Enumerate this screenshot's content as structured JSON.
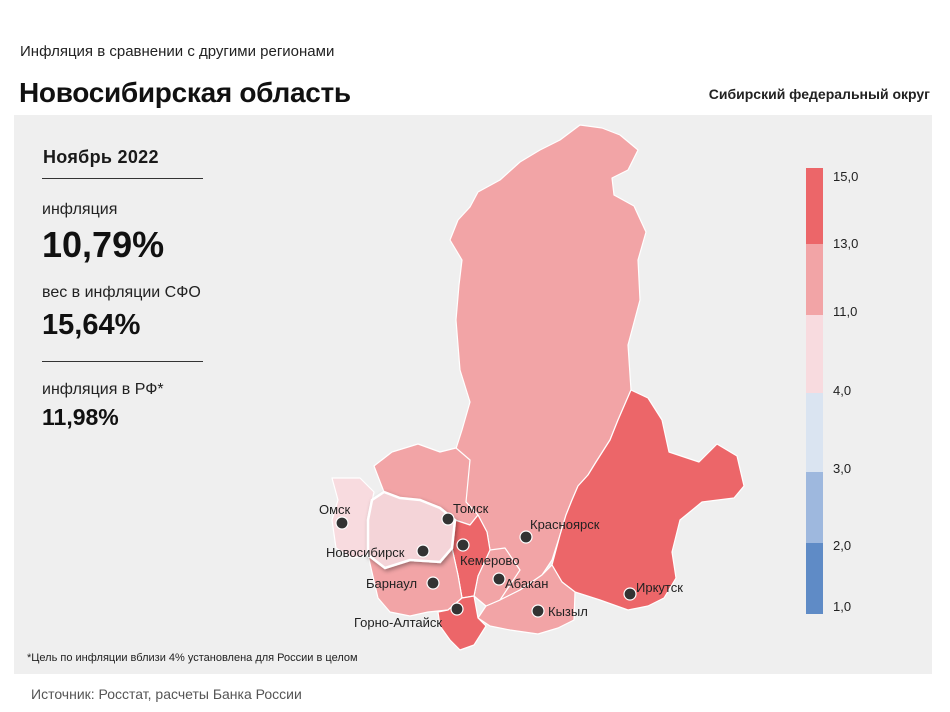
{
  "header": {
    "subtitle": "Инфляция в сравнении с другими регионами",
    "region": "Новосибирская область",
    "district": "Сибирский федеральный округ"
  },
  "stats": {
    "period": "Ноябрь 2022",
    "inflation_label": "инфляция",
    "inflation_value": "10,79%",
    "weight_label": "вес в инфляции СФО",
    "weight_value": "15,64%",
    "rf_label": "инфляция в РФ*",
    "rf_value": "11,98%"
  },
  "cities": [
    "Омск",
    "Томск",
    "Новосибирск",
    "Красноярск",
    "Кемерово",
    "Барнаул",
    "Абакан",
    "Кызыл",
    "Иркутск",
    "Горно-Алтайск"
  ],
  "scale": {
    "ticks": [
      "15,0",
      "13,0",
      "11,0",
      "4,0",
      "3,0",
      "2,0",
      "1,0"
    ],
    "colors": [
      "#ec6669",
      "#f2a4a6",
      "#f8dbdf",
      "#dae4f1",
      "#9eb8de",
      "#5f8bc6"
    ]
  },
  "colors": {
    "high": "#ec6669",
    "mid": "#f2a4a6",
    "low": "#f8dbdf",
    "selected": "#f4d4d8"
  },
  "footnote": "*Цель по инфляции вблизи 4% установлена для России в целом",
  "source": "Источник: Росстат, расчеты Банка России"
}
